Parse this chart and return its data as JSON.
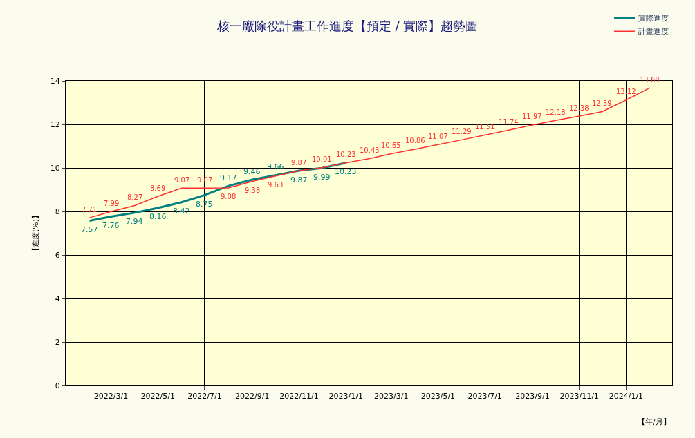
{
  "chart_data": {
    "type": "line",
    "title": "核一廠除役計畫工作進度【預定 / 實際】趨勢圖",
    "xlabel": "【年/月】",
    "ylabel": "【進度(%)】",
    "series": [
      {
        "name": "實際進度",
        "color": "#008080",
        "x": [
          "2022-02-01",
          "2022-03-01",
          "2022-04-01",
          "2022-05-01",
          "2022-06-01",
          "2022-07-01",
          "2022-08-01",
          "2022-09-01",
          "2022-10-01",
          "2022-11-01",
          "2022-12-01",
          "2023-01-01"
        ],
        "values": [
          7.57,
          7.76,
          7.94,
          8.16,
          8.42,
          8.75,
          9.17,
          9.46,
          9.66,
          9.87,
          9.99,
          10.23
        ]
      },
      {
        "name": "計畫進度",
        "color": "#ff3030",
        "x": [
          "2022-02-01",
          "2022-03-01",
          "2022-04-01",
          "2022-05-01",
          "2022-06-01",
          "2022-07-01",
          "2022-08-01",
          "2022-09-01",
          "2022-10-01",
          "2022-11-01",
          "2022-12-01",
          "2023-01-01",
          "2023-02-01",
          "2023-03-01",
          "2023-04-01",
          "2023-05-01",
          "2023-06-01",
          "2023-07-01",
          "2023-08-01",
          "2023-09-01",
          "2023-10-01",
          "2023-11-01",
          "2023-12-01",
          "2024-01-01",
          "2024-02-01"
        ],
        "values": [
          7.71,
          7.99,
          8.27,
          8.69,
          9.07,
          9.07,
          9.08,
          9.38,
          9.63,
          9.87,
          10.01,
          10.23,
          10.43,
          10.65,
          10.86,
          11.07,
          11.29,
          11.51,
          11.74,
          11.97,
          12.18,
          12.38,
          12.59,
          13.12,
          13.68
        ]
      }
    ],
    "xlim": [
      "2022-01-01",
      "2024-03-01"
    ],
    "xticks": [
      {
        "value": "2022-03-01",
        "label": "2022/3/1"
      },
      {
        "value": "2022-05-01",
        "label": "2022/5/1"
      },
      {
        "value": "2022-07-01",
        "label": "2022/7/1"
      },
      {
        "value": "2022-09-01",
        "label": "2022/9/1"
      },
      {
        "value": "2022-11-01",
        "label": "2022/11/1"
      },
      {
        "value": "2023-01-01",
        "label": "2023/1/1"
      },
      {
        "value": "2023-03-01",
        "label": "2023/3/1"
      },
      {
        "value": "2023-05-01",
        "label": "2023/5/1"
      },
      {
        "value": "2023-07-01",
        "label": "2023/7/1"
      },
      {
        "value": "2023-09-01",
        "label": "2023/9/1"
      },
      {
        "value": "2023-11-01",
        "label": "2023/11/1"
      },
      {
        "value": "2024-01-01",
        "label": "2024/1/1"
      }
    ],
    "ylim": [
      0,
      14
    ],
    "yticks": [
      0,
      2,
      4,
      6,
      8,
      10,
      12,
      14
    ],
    "grid": true,
    "legend": "top right",
    "data_labels": true,
    "marker": "none",
    "line_style": "solid"
  }
}
